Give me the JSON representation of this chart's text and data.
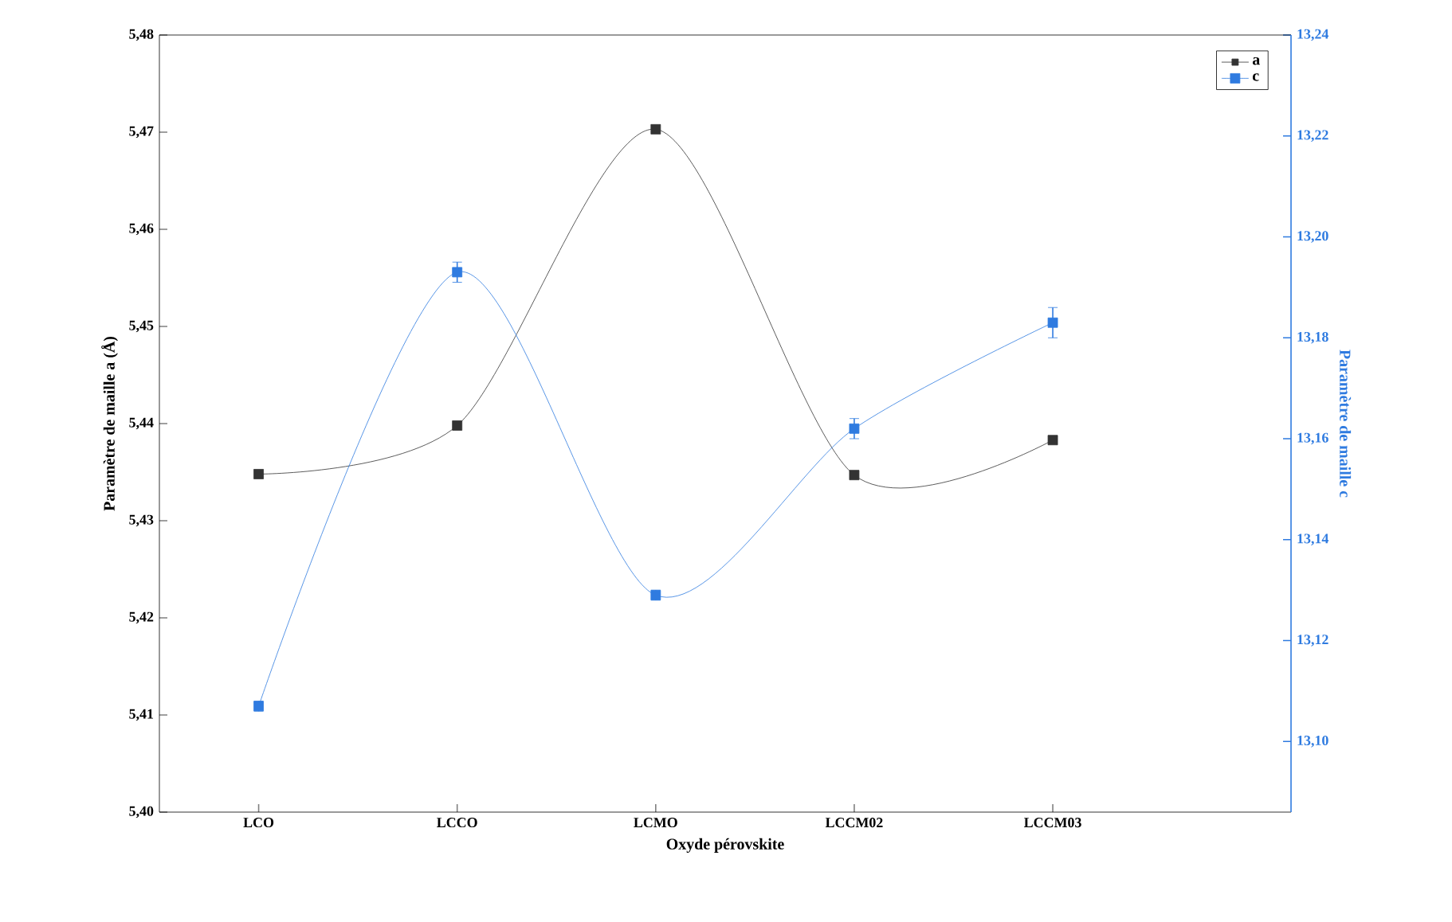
{
  "chart_data": {
    "type": "line",
    "xlabel": "Oxyde pérovskite",
    "ylabel": "Paramètre de maille a (Å)",
    "y2label": "Paramètre de maille c",
    "categories": [
      "LCO",
      "LCCO",
      "LCMO",
      "LCCM02",
      "LCCM03"
    ],
    "series": [
      {
        "name": "a",
        "color": "#333333",
        "values": [
          5.4348,
          5.4398,
          5.4703,
          5.4347,
          5.4383
        ]
      },
      {
        "name": "c",
        "color": "#2f7be0",
        "axis": "y2",
        "values": [
          13.107,
          13.193,
          13.129,
          13.162,
          13.183
        ],
        "errors": [
          0.001,
          0.002,
          0.001,
          0.002,
          0.003
        ]
      }
    ],
    "ylim": [
      5.4,
      5.48
    ],
    "yticks": [
      {
        "value": 5.4,
        "label": "5,40"
      },
      {
        "value": 5.41,
        "label": "5,41"
      },
      {
        "value": 5.42,
        "label": "5,42"
      },
      {
        "value": 5.43,
        "label": "5,43"
      },
      {
        "value": 5.44,
        "label": "5,44"
      },
      {
        "value": 5.45,
        "label": "5,45"
      },
      {
        "value": 5.46,
        "label": "5,46"
      },
      {
        "value": 5.47,
        "label": "5,47"
      },
      {
        "value": 5.48,
        "label": "5,48"
      }
    ],
    "y2lim": [
      13.086,
      13.24
    ],
    "y2ticks": [
      {
        "value": 13.1,
        "label": "13,10"
      },
      {
        "value": 13.12,
        "label": "13,12"
      },
      {
        "value": 13.14,
        "label": "13,14"
      },
      {
        "value": 13.16,
        "label": "13,16"
      },
      {
        "value": 13.18,
        "label": "13,18"
      },
      {
        "value": 13.2,
        "label": "13,20"
      },
      {
        "value": 13.22,
        "label": "13,22"
      },
      {
        "value": 13.24,
        "label": "13,24"
      }
    ],
    "marker": "square",
    "line_style": "solid",
    "legend": "top right",
    "grid": false
  }
}
